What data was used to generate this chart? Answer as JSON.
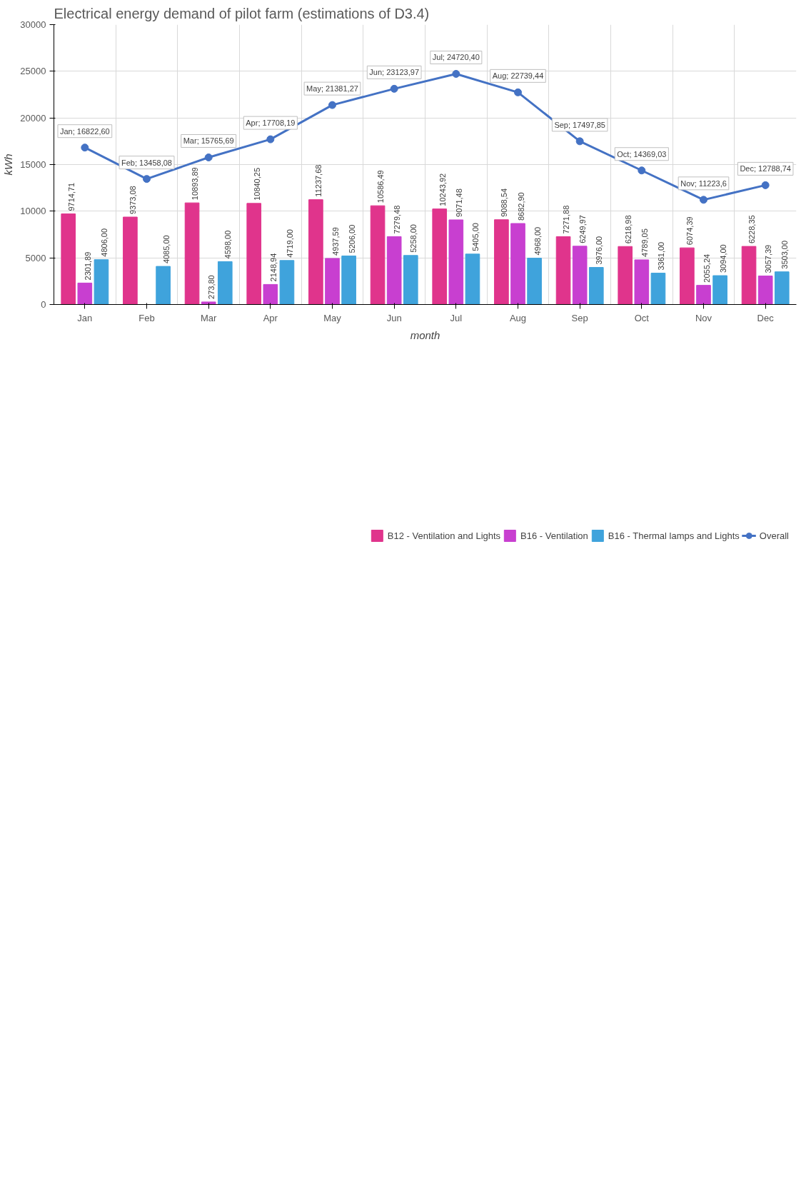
{
  "chart_data": {
    "type": "bar",
    "title": "Electrical energy demand of pilot farm (estimations of D3.4)",
    "xlabel": "month",
    "ylabel": "kWh",
    "categories": [
      "Jan",
      "Feb",
      "Mar",
      "Apr",
      "May",
      "Jun",
      "Jul",
      "Aug",
      "Sep",
      "Oct",
      "Nov",
      "Dec"
    ],
    "series": [
      {
        "name": "B12 - Ventilation and Lights",
        "color": "#e0348c",
        "values": [
          9714.71,
          9373.08,
          10893.89,
          10840.25,
          11237.68,
          10586.49,
          10243.92,
          9088.54,
          7271.88,
          6218.98,
          6074.39,
          6228.35
        ],
        "value_labels": [
          "9714,71",
          "9373,08",
          "10893,89",
          "10840,25",
          "11237,68",
          "10586,49",
          "10243,92",
          "9088,54",
          "7271,88",
          "6218,98",
          "6074,39",
          "6228,35"
        ]
      },
      {
        "name": "B16 - Ventilation",
        "color": "#c83fd0",
        "values": [
          2301.89,
          null,
          273.8,
          2148.94,
          4937.59,
          7279.48,
          9071.48,
          8682.9,
          6249.97,
          4789.05,
          2055.24,
          3057.39
        ],
        "value_labels": [
          "2301,89",
          null,
          "273,80",
          "2148,94",
          "4937,59",
          "7279,48",
          "9071,48",
          "8682,90",
          "6249,97",
          "4789,05",
          "2055,24",
          "3057,39"
        ]
      },
      {
        "name": "B16 - Thermal lamps and Lights",
        "color": "#3fa3dc",
        "values": [
          4806,
          4085,
          4598,
          4719,
          5206,
          5258,
          5405,
          4968,
          3976,
          3361,
          3094,
          3503
        ],
        "value_labels": [
          "4806,00",
          "4085,00",
          "4598,00",
          "4719,00",
          "5206,00",
          "5258,00",
          "5405,00",
          "4968,00",
          "3976,00",
          "3361,00",
          "3094,00",
          "3503,00"
        ]
      },
      {
        "name": "Overall",
        "type": "line",
        "marker": "circle",
        "color": "#4472c4",
        "values": [
          16822.6,
          13458.08,
          15765.69,
          17708.19,
          21381.27,
          23123.97,
          24720.4,
          22739.44,
          17497.85,
          14369.03,
          11223.6,
          12788.74
        ],
        "value_labels": [
          "Jan; 16822,60",
          "Feb; 13458,08",
          "Mar; 15765,69",
          "Apr; 17708,19",
          "May; 21381,27",
          "Jun; 23123,97",
          "Jul; 24720,40",
          "Aug; 22739,44",
          "Sep; 17497,85",
          "Oct; 14369,03",
          "Nov; 11223,6",
          "Dec; 12788,74"
        ]
      }
    ],
    "ylim": [
      0,
      30000
    ],
    "yticks": [
      0,
      5000,
      10000,
      15000,
      20000,
      25000,
      30000
    ],
    "grid": true,
    "legend": "bottom"
  }
}
